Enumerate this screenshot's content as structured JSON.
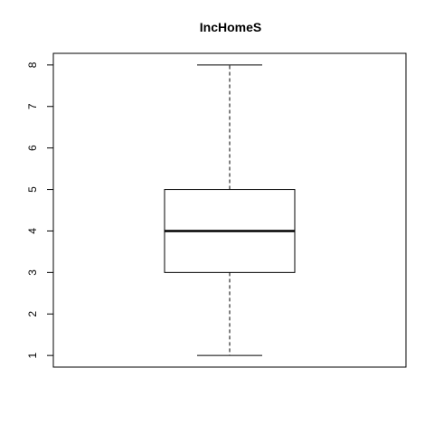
{
  "chart_data": {
    "type": "boxplot",
    "title": "IncHomeS",
    "xlabel": "",
    "ylabel": "",
    "ylim": [
      0.72,
      8.28
    ],
    "yticks": [
      "1",
      "2",
      "3",
      "4",
      "5",
      "6",
      "7",
      "8"
    ],
    "box": {
      "min": 1,
      "q1": 3,
      "median": 4,
      "q3": 5,
      "max": 8
    },
    "grid": false,
    "colors": {
      "stroke": "#000000",
      "fill": "#ffffff"
    }
  }
}
